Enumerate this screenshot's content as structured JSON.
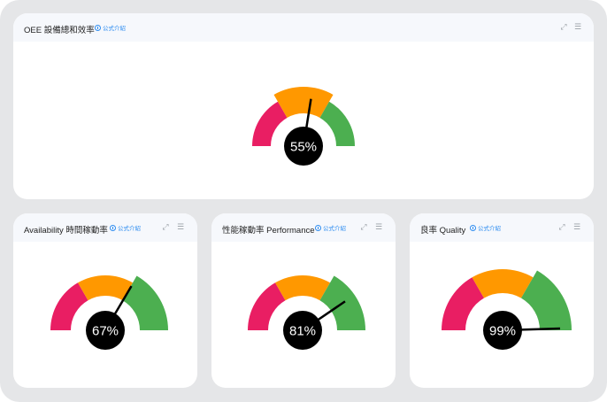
{
  "formula_label": "公式介紹",
  "colors": {
    "low": "#e91e63",
    "mid": "#ff9800",
    "high": "#4caf50",
    "needle": "#000000"
  },
  "icons": {
    "formula": "info-circle-icon",
    "expand": "expand-icon",
    "menu": "menu-icon"
  },
  "cards": [
    {
      "title": "OEE 設備總和效率",
      "value_label": "55%",
      "value": 55,
      "highlight": "mid"
    },
    {
      "title": "Availability 時間稼動率",
      "value_label": "67%",
      "value": 67,
      "highlight": "high"
    },
    {
      "title": "性能稼動率 Performance",
      "value_label": "81%",
      "value": 81,
      "highlight": "high"
    },
    {
      "title": "良率 Quality",
      "value_label": "99%",
      "value": 99,
      "highlight": "high"
    }
  ]
}
